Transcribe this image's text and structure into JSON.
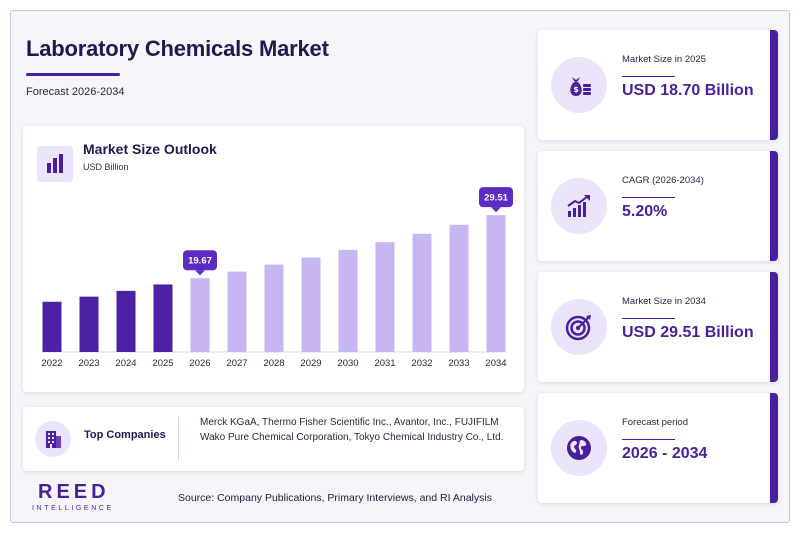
{
  "header": {
    "title": "Laboratory Chemicals Market",
    "subtitle": "Forecast 2026-2034"
  },
  "chart": {
    "title": "Market Size Outlook",
    "unit": "USD Billion"
  },
  "chart_data": {
    "type": "bar",
    "title": "Market Size Outlook",
    "ylabel": "USD Billion",
    "categories": [
      "2022",
      "2023",
      "2024",
      "2025",
      "2026",
      "2027",
      "2028",
      "2029",
      "2030",
      "2031",
      "2032",
      "2033",
      "2034"
    ],
    "values": [
      16.0,
      16.8,
      17.7,
      18.7,
      19.67,
      20.7,
      21.8,
      22.9,
      24.1,
      25.3,
      26.6,
      28.0,
      29.51
    ],
    "ylim": [
      0,
      30
    ],
    "historical_color": "#4a22a3",
    "forecast_color": "#c8b6f2",
    "callouts": [
      {
        "category": "2026",
        "label": "19.67"
      },
      {
        "category": "2034",
        "label": "29.51"
      }
    ],
    "callout_color": "#5b2bc4",
    "grid": false
  },
  "companies": {
    "label": "Top Companies",
    "list": "Merck KGaA, Thermo Fisher Scientific Inc., Avantor, Inc., FUJIFILM Wako Pure Chemical Corporation, Tokyo Chemical Industry Co., Ltd.",
    "icon": "building-icon"
  },
  "logo": {
    "main": "REED",
    "sub": "INTELLIGENCE"
  },
  "source": "Source: Company Publications, Primary Interviews, and RI Analysis",
  "stats": [
    {
      "label": "Market Size in 2025",
      "value": "USD 18.70 Billion",
      "icon": "money-bag-icon"
    },
    {
      "label": "CAGR (2026-2034)",
      "value": "5.20%",
      "icon": "growth-chart-icon"
    },
    {
      "label": "Market Size in 2034",
      "value": "USD 29.51 Billion",
      "icon": "target-icon"
    },
    {
      "label": "Forecast period",
      "value": "2026 - 2034",
      "icon": "globe-icon"
    }
  ],
  "colors": {
    "brand": "#4a1f9c",
    "title": "#22174f",
    "icon_bg": "#ece4fb"
  }
}
